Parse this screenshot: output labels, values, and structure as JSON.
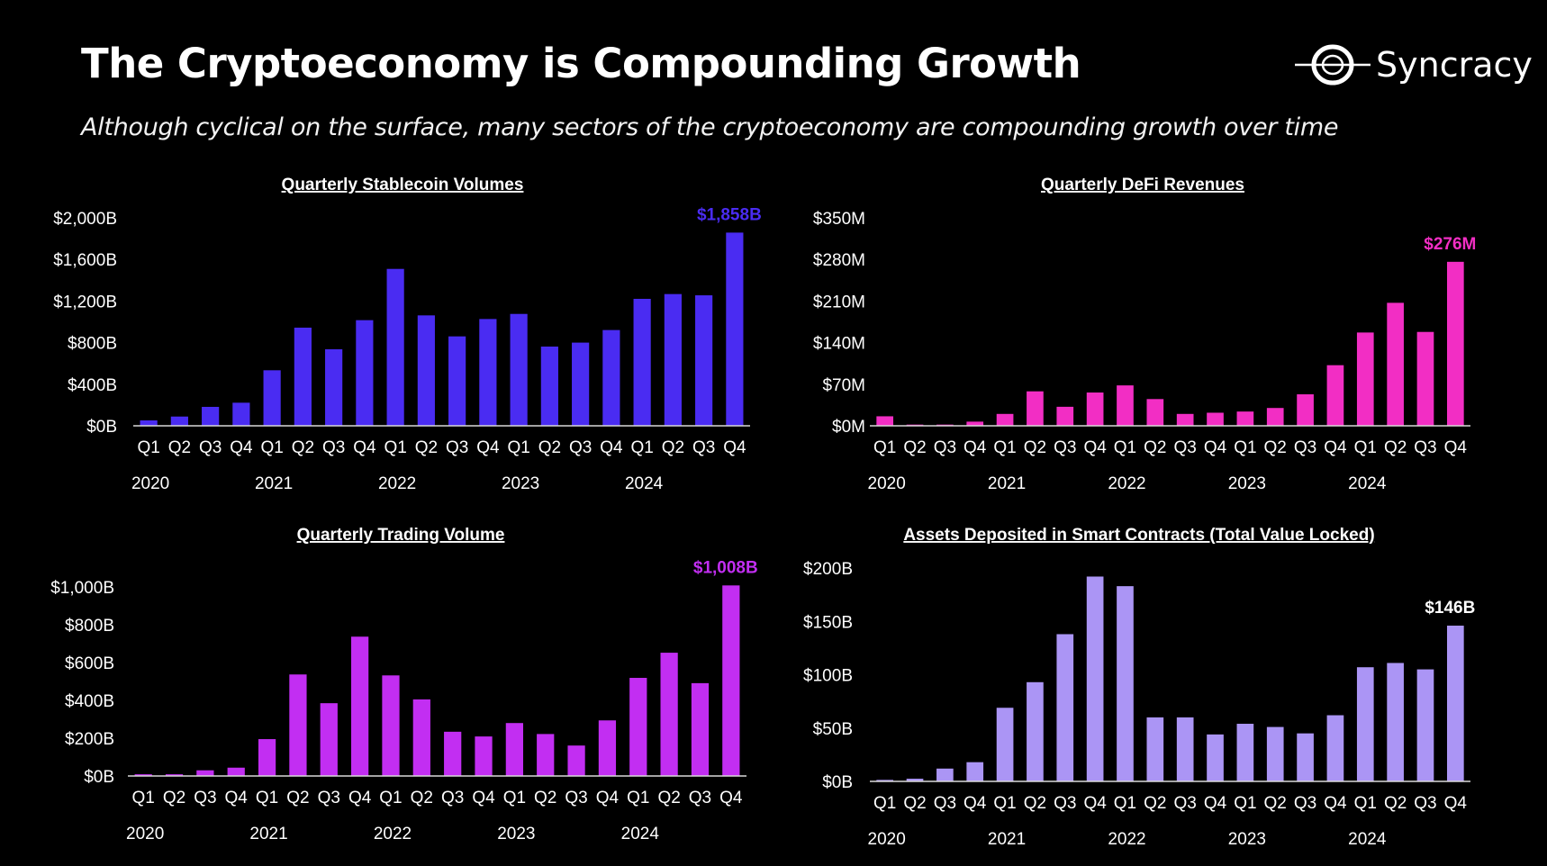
{
  "header": {
    "title": "The Cryptoeconomy is Compounding Growth",
    "subtitle": "Although cyclical on the surface, many sectors of the cryptoeconomy are compounding growth over time",
    "logo_text": "Syncracy"
  },
  "chart_data": [
    {
      "type": "bar",
      "title": "Quarterly Stablecoin Volumes",
      "categories": [
        "Q1",
        "Q2",
        "Q3",
        "Q4",
        "Q1",
        "Q2",
        "Q3",
        "Q4",
        "Q1",
        "Q2",
        "Q3",
        "Q4",
        "Q1",
        "Q2",
        "Q3",
        "Q4",
        "Q1",
        "Q2",
        "Q3",
        "Q4"
      ],
      "years": [
        "2020",
        "2021",
        "2022",
        "2023",
        "2024"
      ],
      "values": [
        52,
        89,
        182,
        222,
        534,
        944,
        736,
        1016,
        1509,
        1062,
        860,
        1027,
        1076,
        762,
        800,
        921,
        1221,
        1267,
        1255,
        1858
      ],
      "ylim": [
        0,
        2000
      ],
      "yticks": [
        "$0B",
        "$400B",
        "$800B",
        "$1,200B",
        "$1,600B",
        "$2,000B"
      ],
      "ytick_values": [
        0,
        400,
        800,
        1200,
        1600,
        2000
      ],
      "last_label": "$1,858B",
      "color": "#4a2cf2",
      "label_color": "#4a2cf2",
      "xlabel": "",
      "ylabel": ""
    },
    {
      "type": "bar",
      "title": "Quarterly DeFi Revenues",
      "categories": [
        "Q1",
        "Q2",
        "Q3",
        "Q4",
        "Q1",
        "Q2",
        "Q3",
        "Q4",
        "Q1",
        "Q2",
        "Q3",
        "Q4",
        "Q1",
        "Q2",
        "Q3",
        "Q4",
        "Q1",
        "Q2",
        "Q3",
        "Q4"
      ],
      "years": [
        "2020",
        "2021",
        "2022",
        "2023",
        "2024"
      ],
      "values": [
        16,
        2,
        2,
        7,
        20,
        58,
        32,
        56,
        68,
        45,
        20,
        22,
        24,
        30,
        53,
        102,
        157,
        207,
        158,
        276
      ],
      "ylim": [
        0,
        350
      ],
      "yticks": [
        "$0M",
        "$70M",
        "$140M",
        "$210M",
        "$280M",
        "$350M"
      ],
      "ytick_values": [
        0,
        70,
        140,
        210,
        280,
        350
      ],
      "last_label": "$276M",
      "color": "#f22ec4",
      "label_color": "#f22ec4",
      "xlabel": "",
      "ylabel": ""
    },
    {
      "type": "bar",
      "title": "Quarterly Trading Volume",
      "categories": [
        "Q1",
        "Q2",
        "Q3",
        "Q4",
        "Q1",
        "Q2",
        "Q3",
        "Q4",
        "Q1",
        "Q2",
        "Q3",
        "Q4",
        "Q1",
        "Q2",
        "Q3",
        "Q4",
        "Q1",
        "Q2",
        "Q3",
        "Q4"
      ],
      "years": [
        "2020",
        "2021",
        "2022",
        "2023",
        "2024"
      ],
      "values": [
        9,
        9,
        30,
        44,
        195,
        537,
        385,
        737,
        532,
        405,
        234,
        209,
        280,
        222,
        161,
        294,
        519,
        652,
        491,
        1008
      ],
      "ylim": [
        0,
        1000
      ],
      "yticks": [
        "$0B",
        "$200B",
        "$400B",
        "$600B",
        "$800B",
        "$1,000B"
      ],
      "ytick_values": [
        0,
        200,
        400,
        600,
        800,
        1000
      ],
      "last_label": "$1,008B",
      "color": "#c22ef2",
      "label_color": "#c22ef2",
      "xlabel": "",
      "ylabel": ""
    },
    {
      "type": "bar",
      "title": "Assets Deposited in Smart Contracts (Total Value Locked)",
      "categories": [
        "Q1",
        "Q2",
        "Q3",
        "Q4",
        "Q1",
        "Q2",
        "Q3",
        "Q4",
        "Q1",
        "Q2",
        "Q3",
        "Q4",
        "Q1",
        "Q2",
        "Q3",
        "Q4",
        "Q1",
        "Q2",
        "Q3",
        "Q4"
      ],
      "years": [
        "2020",
        "2021",
        "2022",
        "2023",
        "2024"
      ],
      "values": [
        1.4,
        2.5,
        12,
        18,
        69,
        93,
        138,
        192,
        183,
        60,
        60,
        44,
        54,
        51,
        45,
        62,
        107,
        111,
        105,
        146
      ],
      "ylim": [
        0,
        200
      ],
      "yticks": [
        "$0B",
        "$50B",
        "$100B",
        "$150B",
        "$200B"
      ],
      "ytick_values": [
        0,
        50,
        100,
        150,
        200
      ],
      "last_label": "$146B",
      "color": "#ab95f5",
      "label_color": "#ffffff",
      "xlabel": "",
      "ylabel": ""
    }
  ]
}
